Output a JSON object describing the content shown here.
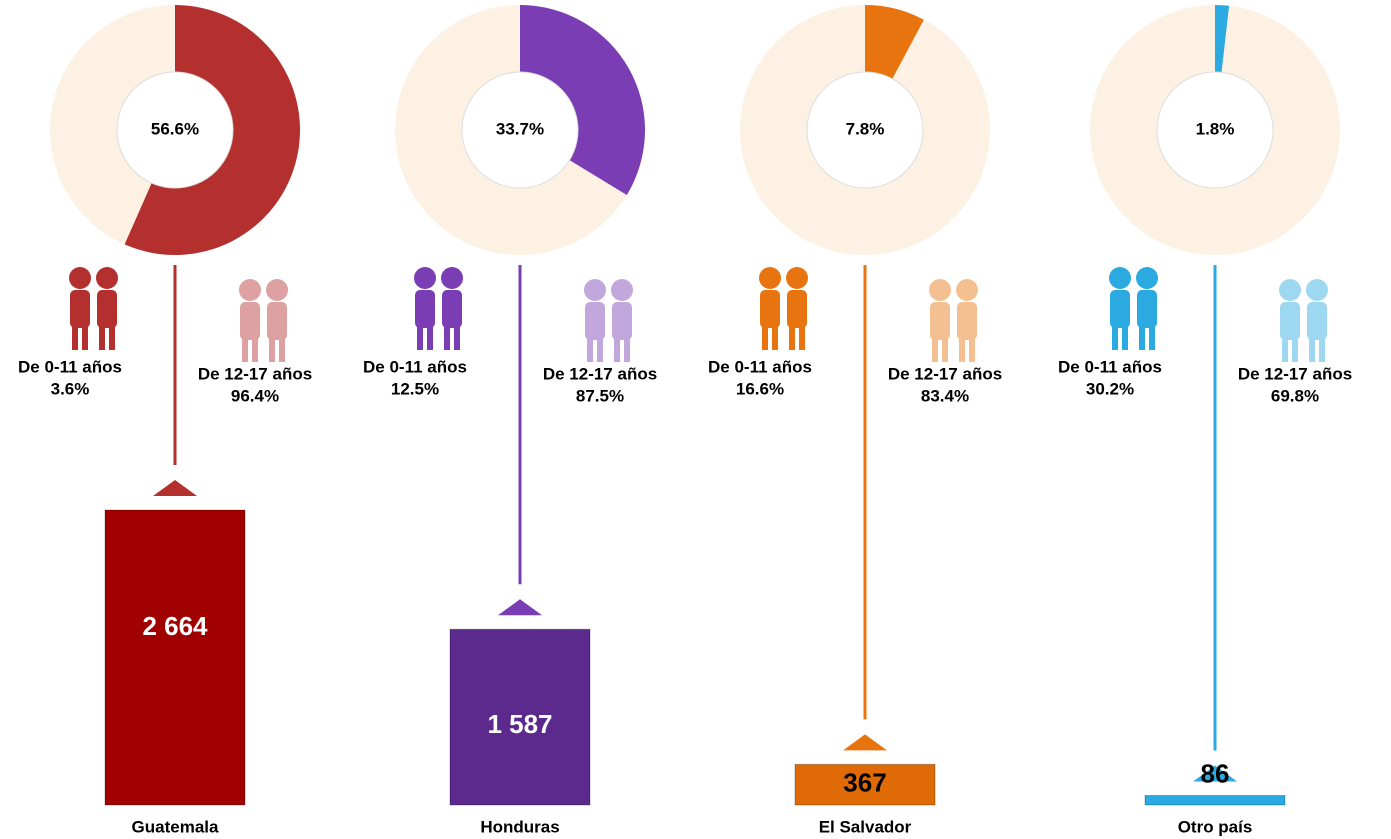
{
  "chart_data": {
    "type": "donut-bar",
    "categories": [
      "Guatemala",
      "Honduras",
      "El Salvador",
      "Otro país"
    ],
    "shares": [
      56.6,
      33.7,
      7.8,
      1.8
    ],
    "share_labels": [
      "56.6%",
      "33.7%",
      "7.8%",
      "1.8%"
    ],
    "values": [
      2664,
      1587,
      367,
      86
    ],
    "value_labels": [
      "2 664",
      "1 587",
      "367",
      "86"
    ],
    "colors": [
      "#b3302e",
      "#7a3db3",
      "#e8740f",
      "#2aaae0"
    ],
    "bar_colors": [
      "#a00000",
      "#5b2a8c",
      "#e06a05",
      "#2aaae0"
    ],
    "age_groups": [
      {
        "name": "De 0-11 años",
        "values": [
          3.6,
          12.5,
          16.6,
          30.2
        ],
        "value_labels": [
          "3.6%",
          "12.5%",
          "16.6%",
          "30.2%"
        ]
      },
      {
        "name": "De 12-17 años",
        "values": [
          96.4,
          87.5,
          83.4,
          69.8
        ],
        "value_labels": [
          "96.4%",
          "87.5%",
          "83.4%",
          "69.8%"
        ]
      }
    ]
  }
}
